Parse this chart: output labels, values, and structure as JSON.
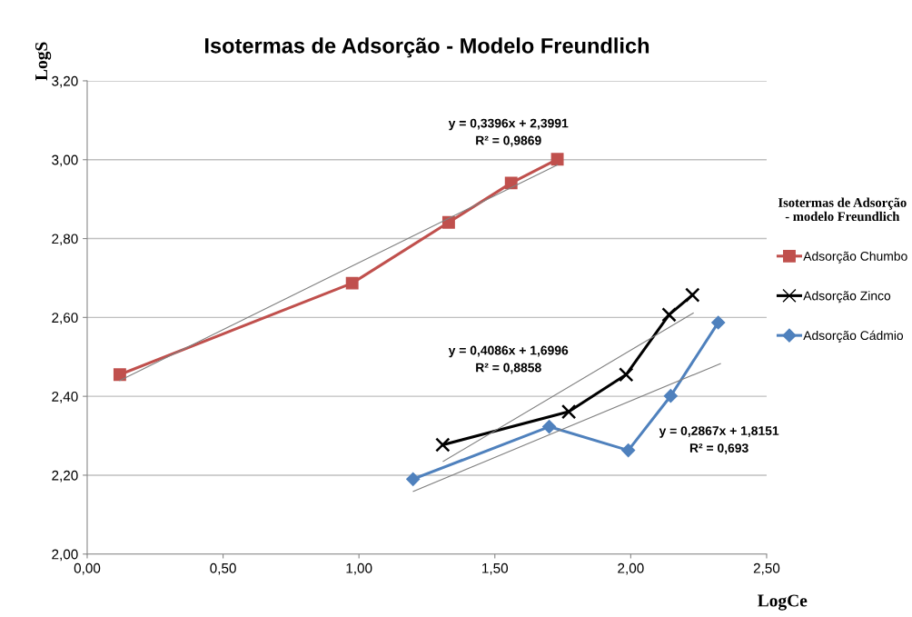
{
  "chart_data": {
    "type": "line",
    "title": "Isotermas de Adsorção - Modelo Freundlich",
    "xlabel": "LogCe",
    "ylabel": "LogS",
    "legend_title": "Isotermas de Adsorção\n- modelo Freundlich",
    "xlim": [
      0,
      2.5
    ],
    "xticks": [
      {
        "value": 0,
        "label": "0,00"
      },
      {
        "value": 0.5,
        "label": "0,50"
      },
      {
        "value": 1,
        "label": "1,00"
      },
      {
        "value": 1.5,
        "label": "1,50"
      },
      {
        "value": 2,
        "label": "2,00"
      },
      {
        "value": 2.5,
        "label": "2,50"
      }
    ],
    "ylim": [
      2,
      3.2
    ],
    "yticks": [
      {
        "value": 2,
        "label": "2,00"
      },
      {
        "value": 2.2,
        "label": "2,20"
      },
      {
        "value": 2.4,
        "label": "2,40"
      },
      {
        "value": 2.6,
        "label": "2,60"
      },
      {
        "value": 2.8,
        "label": "2,80"
      },
      {
        "value": 3,
        "label": "3,00"
      },
      {
        "value": 3.2,
        "label": "3,20"
      }
    ],
    "grid": "y",
    "legend": "right",
    "series": [
      {
        "name": "Adsorção Chumbo",
        "color": "#c0504d",
        "marker": "square",
        "x": [
          0.12,
          0.975,
          1.33,
          1.56,
          1.73
        ],
        "values": [
          2.455,
          2.687,
          2.841,
          2.941,
          3.001
        ]
      },
      {
        "name": "Adsorção Zinco",
        "color": "#000000",
        "marker": "cross",
        "x": [
          1.308,
          1.772,
          1.983,
          2.141,
          2.227
        ],
        "values": [
          2.277,
          2.361,
          2.455,
          2.607,
          2.657
        ]
      },
      {
        "name": "Adsorção Cádmio",
        "color": "#4f81bd",
        "marker": "diamond",
        "x": [
          1.199,
          1.7,
          1.991,
          2.147,
          2.322
        ],
        "values": [
          2.19,
          2.323,
          2.263,
          2.401,
          2.587
        ]
      },
      {
        "color": "#808080",
        "marker": "none",
        "x": [
          0.12,
          1.73
        ],
        "values": [
          2.44,
          2.987
        ]
      },
      {
        "color": "#808080",
        "marker": "none",
        "x": [
          1.31,
          2.23
        ],
        "values": [
          2.235,
          2.611
        ]
      },
      {
        "color": "#808080",
        "marker": "none",
        "x": [
          1.2,
          2.33
        ],
        "values": [
          2.159,
          2.483
        ]
      }
    ],
    "annotations": [
      "y = 0,3396x + 2,3991\nR² = 0,9869",
      "y = 0,4086x + 1,6996\nR² = 0,8858",
      "y = 0,2867x + 1,8151\nR² = 0,693"
    ]
  }
}
